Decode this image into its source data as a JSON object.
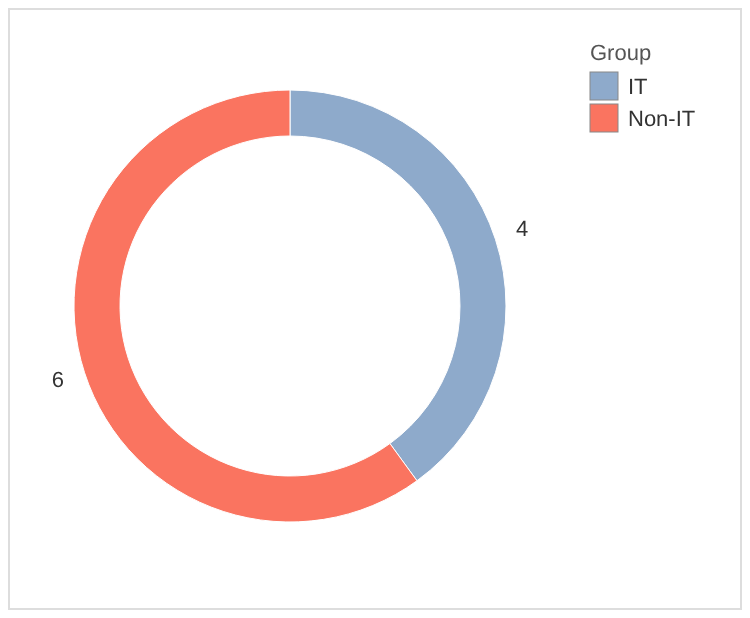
{
  "chart_data": {
    "type": "donut",
    "legend_title": "Group",
    "categories": [
      "IT",
      "Non-IT"
    ],
    "values": [
      4,
      6
    ],
    "colors": [
      "#8eaacb",
      "#fa7460"
    ],
    "data_labels": true,
    "legend": "top right"
  }
}
